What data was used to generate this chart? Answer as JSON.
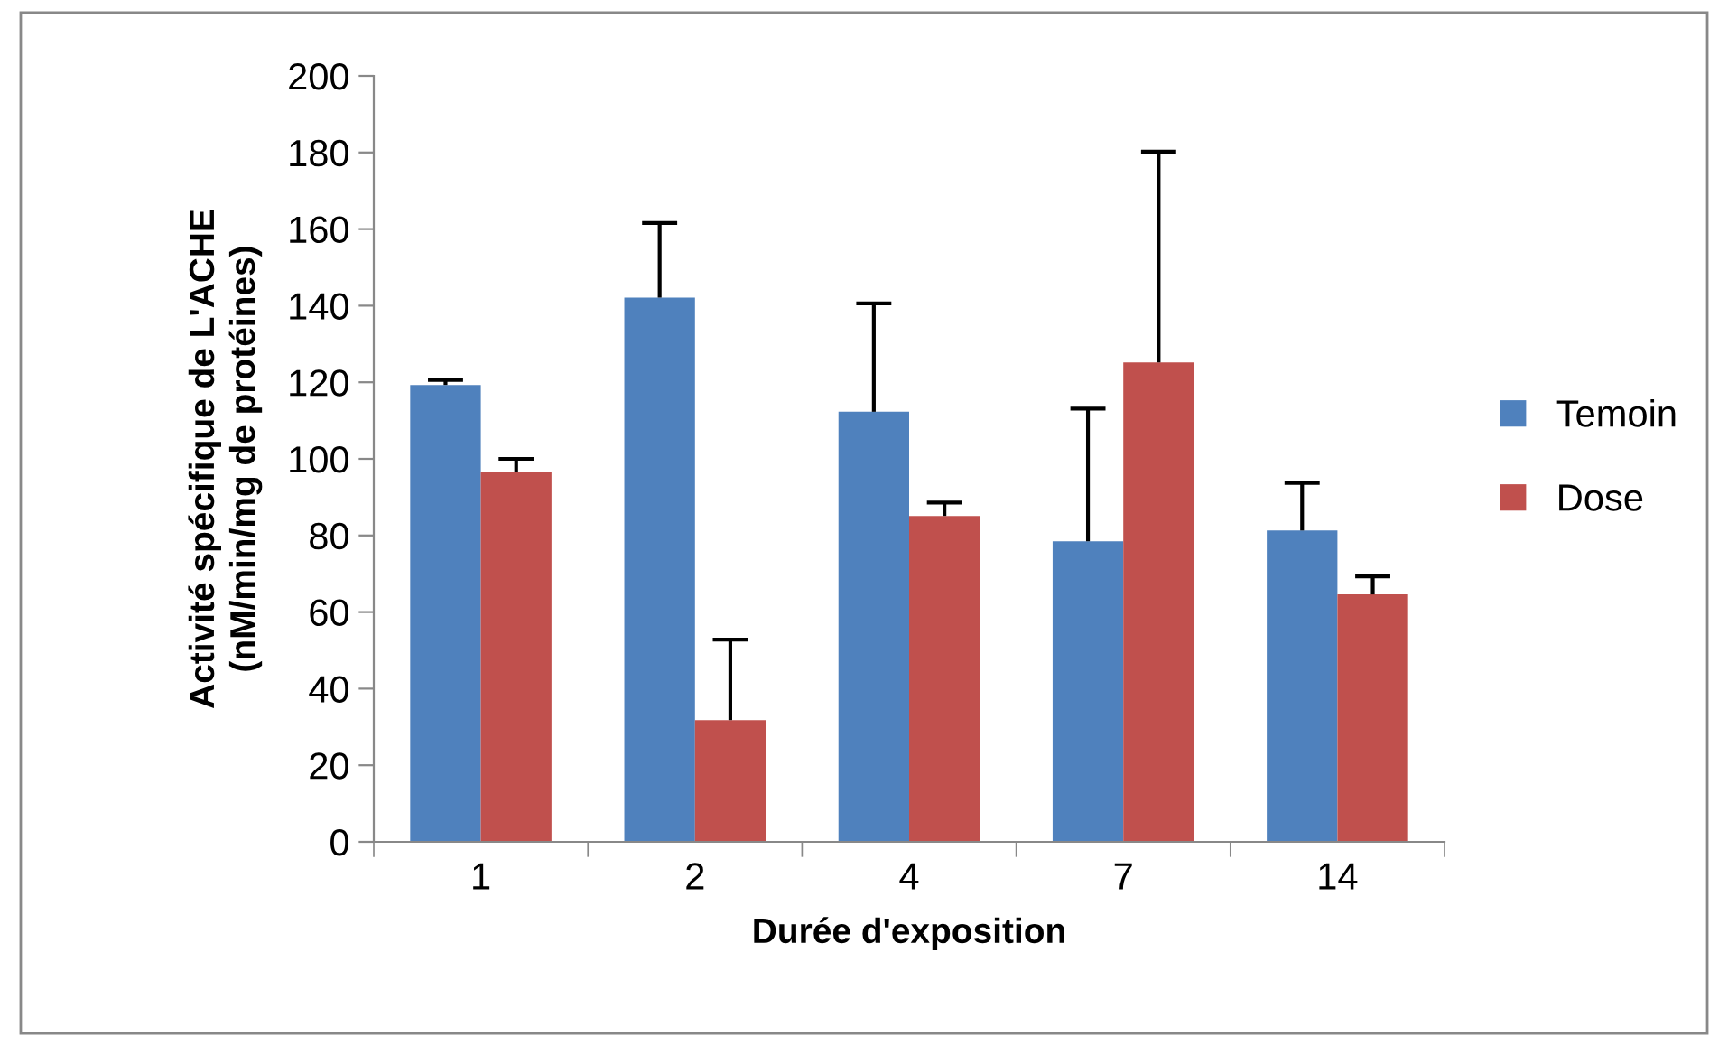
{
  "chart_data": {
    "type": "bar",
    "xlabel": "Durée d'exposition",
    "ylabel": "Activité spécifique de L'ACHE\n(nM/min/mg de protéines)",
    "categories": [
      "1",
      "2",
      "4",
      "7",
      "14"
    ],
    "series": [
      {
        "name": "Temoin",
        "color": "#4f81bd",
        "values": [
          119.3,
          142.1,
          112.3,
          78.5,
          81.3
        ],
        "errors": [
          [
            119.3,
            120.6
          ],
          [
            142.1,
            161.6
          ],
          [
            112.3,
            140.6
          ],
          [
            78.5,
            113.1
          ],
          [
            81.3,
            93.7
          ]
        ]
      },
      {
        "name": "Dose",
        "color": "#c0504d",
        "values": [
          96.5,
          31.8,
          85.1,
          125.2,
          64.6
        ],
        "errors": [
          [
            96.5,
            100
          ],
          [
            31.8,
            52.8
          ],
          [
            85.1,
            88.6
          ],
          [
            125.2,
            180.2
          ],
          [
            64.6,
            69.3
          ]
        ]
      }
    ],
    "ylim": [
      0,
      200
    ],
    "yticks": [
      0,
      20,
      40,
      60,
      80,
      100,
      120,
      140,
      160,
      180,
      200
    ],
    "grid": false,
    "legend": "right"
  }
}
